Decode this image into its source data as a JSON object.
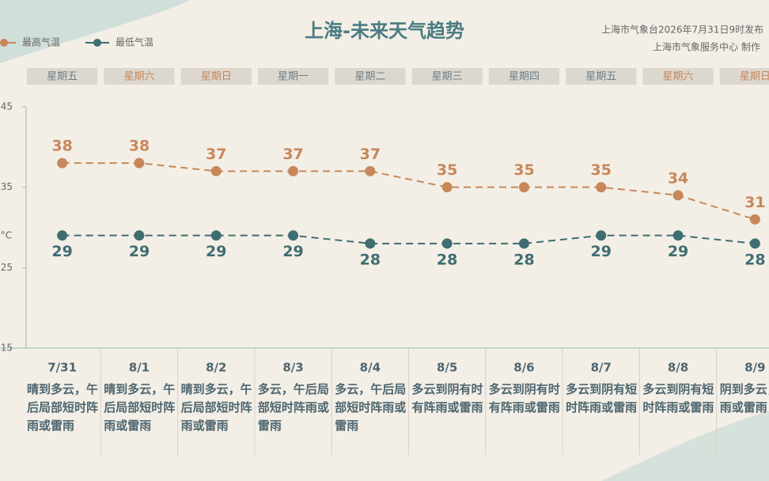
{
  "chart_data": {
    "type": "line",
    "title": "上海-未来天气趋势",
    "source": [
      "上海市气象台2026年7月31日9时发布",
      "上海市气象服务中心 制作"
    ],
    "y_label": "°C",
    "categories": [
      "7/31",
      "8/1",
      "8/2",
      "8/3",
      "8/4",
      "8/5",
      "8/6",
      "8/7",
      "8/8",
      "8/9"
    ],
    "weekdays": [
      "星期五",
      "星期六",
      "星期日",
      "星期一",
      "星期二",
      "星期三",
      "星期四",
      "星期五",
      "星期六",
      "星期日"
    ],
    "weekday_colors": [
      "#6e7f86",
      "#c8875a",
      "#c8875a",
      "#6e7f86",
      "#6e7f86",
      "#6e7f86",
      "#6e7f86",
      "#6e7f86",
      "#c8875a",
      "#c8875a"
    ],
    "weather": [
      "晴到多云，午后局部短时阵雨或雷雨",
      "晴到多云，午后局部短时阵雨或雷雨",
      "晴到多云，午后局部短时阵雨或雷雨",
      "多云，午后局部短时阵雨或雷雨",
      "多云，午后局部短时阵雨或雷雨",
      "多云到阴有时有阵雨或雷雨",
      "多云到阴有时有阵雨或雷雨",
      "多云到阴有短时阵雨或雷雨",
      "多云到阴有短时阵雨或雷雨",
      "阴到多云，阵雨或雷雨"
    ],
    "series": [
      {
        "name": "最高气温",
        "color": "#c8875a",
        "values": [
          38,
          38,
          37,
          37,
          37,
          35,
          35,
          35,
          34,
          31
        ]
      },
      {
        "name": "最低气温",
        "color": "#3f6d72",
        "values": [
          29,
          29,
          29,
          29,
          28,
          28,
          28,
          29,
          29,
          28
        ]
      }
    ],
    "ylim": [
      15,
      45
    ],
    "yticks": [
      15,
      25,
      35,
      45
    ]
  }
}
